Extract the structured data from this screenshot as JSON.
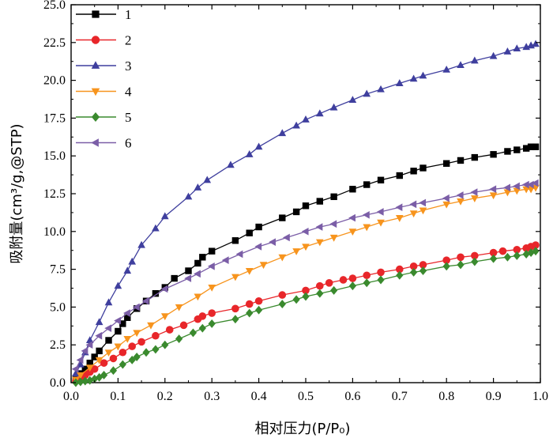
{
  "chart_data": {
    "type": "line",
    "title": "",
    "xlabel": "相对压力(P/P₀)",
    "ylabel": "吸附量(cm³/g,@STP)",
    "xlim": [
      0.0,
      1.0
    ],
    "ylim": [
      0.0,
      25.0
    ],
    "xticks": [
      0.0,
      0.1,
      0.2,
      0.3,
      0.4,
      0.5,
      0.6,
      0.7,
      0.8,
      0.9,
      1.0
    ],
    "yticks": [
      0.0,
      2.5,
      5.0,
      7.5,
      10.0,
      12.5,
      15.0,
      17.5,
      20.0,
      22.5,
      25.0
    ],
    "xtick_labels": [
      "0.0",
      "0.1",
      "0.2",
      "0.3",
      "0.4",
      "0.5",
      "0.6",
      "0.7",
      "0.8",
      "0.9",
      "1.0"
    ],
    "ytick_labels": [
      "0.0",
      "2.5",
      "5.0",
      "7.5",
      "10.0",
      "12.5",
      "15.0",
      "17.5",
      "20.0",
      "22.5",
      "25.0"
    ],
    "grid": false,
    "legend_position": "top-left",
    "series": [
      {
        "name": "1",
        "color": "#000000",
        "marker": "square",
        "x": [
          0.01,
          0.02,
          0.03,
          0.04,
          0.05,
          0.06,
          0.08,
          0.1,
          0.11,
          0.12,
          0.14,
          0.16,
          0.18,
          0.2,
          0.22,
          0.25,
          0.27,
          0.28,
          0.3,
          0.35,
          0.38,
          0.4,
          0.45,
          0.48,
          0.5,
          0.53,
          0.56,
          0.6,
          0.63,
          0.66,
          0.7,
          0.73,
          0.75,
          0.8,
          0.83,
          0.86,
          0.9,
          0.93,
          0.95,
          0.97,
          0.98,
          0.99
        ],
        "y": [
          0.3,
          0.6,
          0.9,
          1.3,
          1.7,
          2.1,
          2.8,
          3.4,
          3.9,
          4.3,
          4.9,
          5.4,
          5.9,
          6.3,
          6.9,
          7.4,
          7.9,
          8.3,
          8.7,
          9.4,
          9.9,
          10.3,
          10.9,
          11.3,
          11.7,
          12.0,
          12.3,
          12.8,
          13.1,
          13.4,
          13.7,
          14.0,
          14.2,
          14.5,
          14.7,
          14.9,
          15.1,
          15.3,
          15.4,
          15.5,
          15.6,
          15.6
        ]
      },
      {
        "name": "2",
        "color": "#e8262a",
        "marker": "circle",
        "x": [
          0.01,
          0.02,
          0.03,
          0.04,
          0.05,
          0.07,
          0.09,
          0.11,
          0.13,
          0.15,
          0.18,
          0.21,
          0.24,
          0.27,
          0.28,
          0.3,
          0.35,
          0.38,
          0.4,
          0.45,
          0.5,
          0.53,
          0.55,
          0.58,
          0.6,
          0.63,
          0.66,
          0.7,
          0.73,
          0.75,
          0.8,
          0.83,
          0.86,
          0.9,
          0.92,
          0.95,
          0.97,
          0.98,
          0.99
        ],
        "y": [
          0.1,
          0.3,
          0.5,
          0.7,
          0.9,
          1.3,
          1.6,
          2.0,
          2.4,
          2.7,
          3.1,
          3.5,
          3.8,
          4.2,
          4.4,
          4.6,
          4.9,
          5.2,
          5.4,
          5.8,
          6.1,
          6.4,
          6.6,
          6.8,
          6.9,
          7.1,
          7.3,
          7.5,
          7.7,
          7.8,
          8.1,
          8.3,
          8.4,
          8.6,
          8.7,
          8.8,
          8.9,
          9.0,
          9.1
        ]
      },
      {
        "name": "3",
        "color": "#3f3f9e",
        "marker": "triangle-up",
        "x": [
          0.01,
          0.02,
          0.03,
          0.04,
          0.06,
          0.08,
          0.1,
          0.12,
          0.13,
          0.15,
          0.18,
          0.2,
          0.25,
          0.27,
          0.29,
          0.34,
          0.38,
          0.4,
          0.45,
          0.48,
          0.5,
          0.53,
          0.56,
          0.6,
          0.63,
          0.66,
          0.7,
          0.73,
          0.75,
          0.8,
          0.83,
          0.86,
          0.9,
          0.93,
          0.95,
          0.97,
          0.98,
          0.99
        ],
        "y": [
          0.6,
          1.2,
          2.0,
          2.8,
          4.0,
          5.3,
          6.4,
          7.4,
          8.0,
          9.1,
          10.2,
          11.0,
          12.3,
          12.9,
          13.4,
          14.4,
          15.1,
          15.6,
          16.5,
          17.0,
          17.4,
          17.8,
          18.2,
          18.7,
          19.1,
          19.4,
          19.8,
          20.1,
          20.3,
          20.7,
          21.0,
          21.3,
          21.6,
          21.9,
          22.1,
          22.2,
          22.3,
          22.4
        ]
      },
      {
        "name": "4",
        "color": "#f7941d",
        "marker": "triangle-down",
        "x": [
          0.01,
          0.02,
          0.04,
          0.06,
          0.08,
          0.1,
          0.12,
          0.14,
          0.17,
          0.2,
          0.23,
          0.27,
          0.3,
          0.35,
          0.38,
          0.41,
          0.45,
          0.48,
          0.5,
          0.53,
          0.56,
          0.6,
          0.63,
          0.66,
          0.7,
          0.73,
          0.75,
          0.8,
          0.83,
          0.86,
          0.9,
          0.93,
          0.95,
          0.97,
          0.98,
          0.99
        ],
        "y": [
          0.2,
          0.5,
          1.0,
          1.5,
          2.0,
          2.4,
          2.9,
          3.3,
          3.8,
          4.4,
          5.0,
          5.7,
          6.3,
          7.0,
          7.4,
          7.8,
          8.3,
          8.7,
          9.0,
          9.3,
          9.6,
          10.0,
          10.3,
          10.6,
          10.9,
          11.2,
          11.4,
          11.8,
          12.0,
          12.2,
          12.4,
          12.6,
          12.7,
          12.8,
          12.8,
          12.9
        ]
      },
      {
        "name": "5",
        "color": "#3a8a2e",
        "marker": "diamond",
        "x": [
          0.01,
          0.02,
          0.03,
          0.04,
          0.05,
          0.06,
          0.07,
          0.09,
          0.11,
          0.13,
          0.14,
          0.16,
          0.18,
          0.2,
          0.23,
          0.26,
          0.28,
          0.3,
          0.35,
          0.38,
          0.4,
          0.45,
          0.48,
          0.5,
          0.53,
          0.56,
          0.6,
          0.63,
          0.66,
          0.7,
          0.73,
          0.75,
          0.8,
          0.83,
          0.86,
          0.9,
          0.93,
          0.95,
          0.97,
          0.98,
          0.99
        ],
        "y": [
          0.0,
          0.05,
          0.1,
          0.15,
          0.25,
          0.35,
          0.5,
          0.8,
          1.2,
          1.5,
          1.7,
          2.0,
          2.2,
          2.5,
          2.9,
          3.3,
          3.6,
          3.9,
          4.2,
          4.6,
          4.8,
          5.2,
          5.5,
          5.7,
          5.9,
          6.1,
          6.4,
          6.6,
          6.8,
          7.1,
          7.3,
          7.4,
          7.7,
          7.8,
          8.0,
          8.2,
          8.3,
          8.4,
          8.5,
          8.6,
          8.7
        ]
      },
      {
        "name": "6",
        "color": "#7b5ea7",
        "marker": "triangle-left",
        "x": [
          0.01,
          0.02,
          0.03,
          0.04,
          0.06,
          0.08,
          0.1,
          0.12,
          0.14,
          0.16,
          0.2,
          0.25,
          0.27,
          0.3,
          0.33,
          0.36,
          0.4,
          0.43,
          0.46,
          0.5,
          0.53,
          0.56,
          0.6,
          0.63,
          0.66,
          0.7,
          0.73,
          0.75,
          0.8,
          0.83,
          0.86,
          0.9,
          0.93,
          0.95,
          0.97,
          0.98,
          0.99
        ],
        "y": [
          0.9,
          1.5,
          2.1,
          2.5,
          3.1,
          3.6,
          4.1,
          4.6,
          5.0,
          5.4,
          6.2,
          6.9,
          7.2,
          7.7,
          8.1,
          8.5,
          9.0,
          9.3,
          9.6,
          10.0,
          10.3,
          10.5,
          10.9,
          11.1,
          11.3,
          11.6,
          11.8,
          11.9,
          12.2,
          12.4,
          12.6,
          12.8,
          12.9,
          13.0,
          13.1,
          13.1,
          13.2
        ]
      }
    ]
  }
}
